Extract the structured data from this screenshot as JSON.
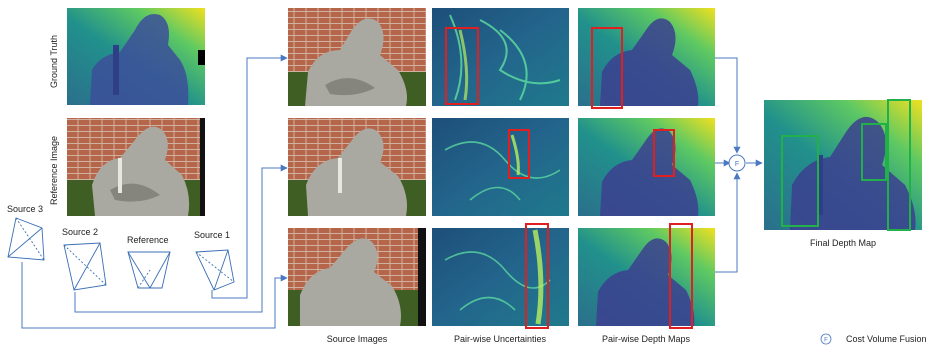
{
  "row_labels": {
    "ground_truth": "Ground Truth",
    "reference_image": "Reference Image"
  },
  "cameras": {
    "source3": "Source 3",
    "source2": "Source 2",
    "reference": "Reference",
    "source1": "Source 1"
  },
  "columns": {
    "source_images": "Source Images",
    "uncertainties": "Pair-wise Uncertainties",
    "depth_maps": "Pair-wise Depth Maps",
    "final_depth": "Final Depth Map"
  },
  "fusion": {
    "symbol": "F",
    "legend_label": "Cost Volume Fusion"
  },
  "colors": {
    "arrow": "#4a78c2",
    "highlight_red": "#e02020",
    "highlight_green": "#22b04a",
    "depth_far": "#f0e020",
    "depth_near": "#3b1e6e"
  }
}
